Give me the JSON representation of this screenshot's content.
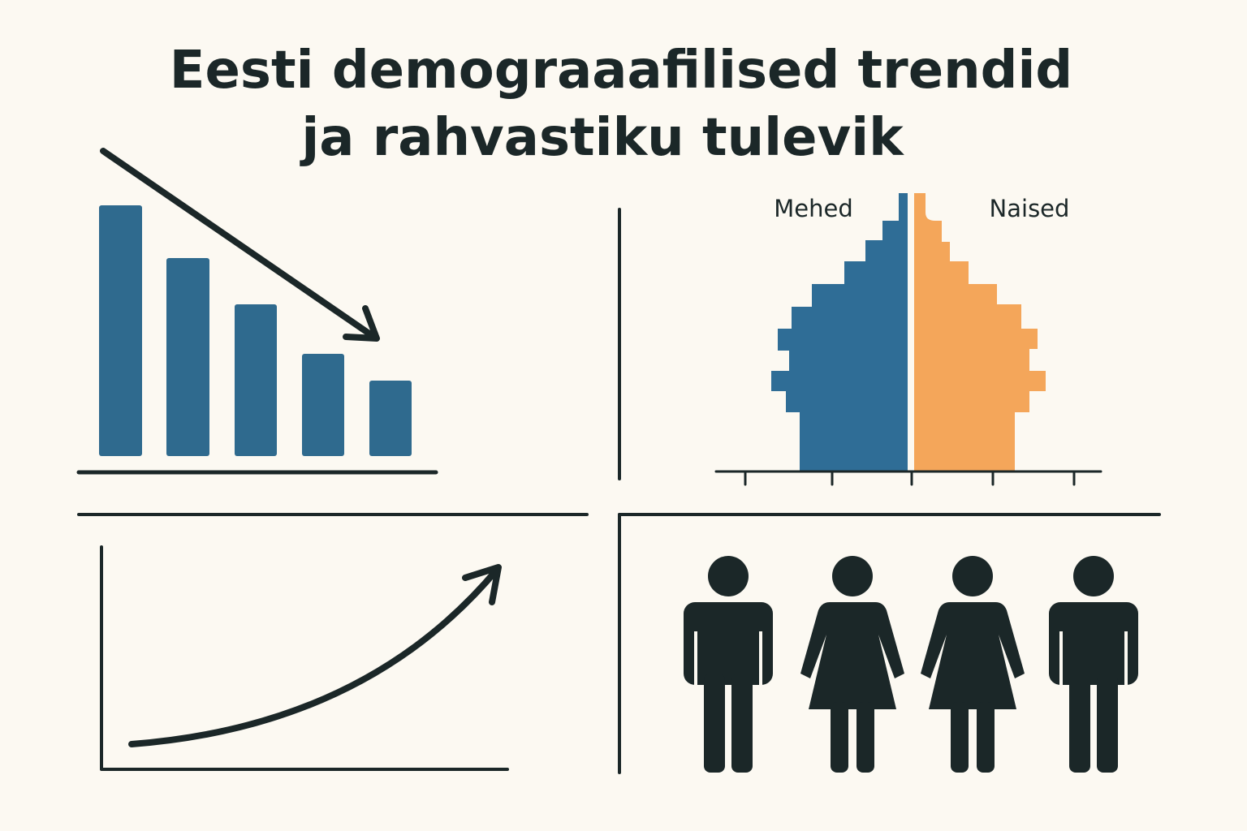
{
  "title": {
    "line1": "Eesti demograaafilised trendid",
    "line2": "ja rahvastiku tulevik"
  },
  "pyramid": {
    "left_label": "Mehed",
    "right_label": "Naised"
  }
}
